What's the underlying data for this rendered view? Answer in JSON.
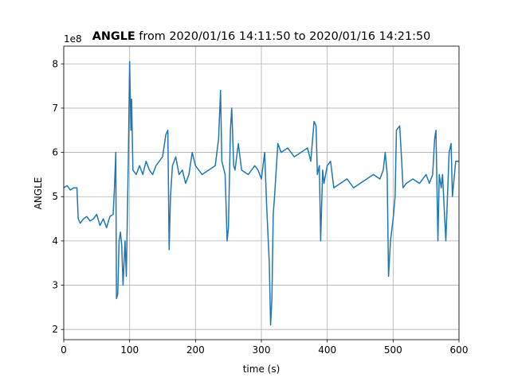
{
  "chart_data": {
    "type": "line",
    "title_bold": "ANGLE",
    "title": " from 2020/01/16 14:11:50 to 2020/01/16 14:21:50",
    "offset_text": "1e8",
    "x_label": "time (s)",
    "y_label": "ANGLE",
    "x": [
      0,
      5,
      10,
      15,
      20,
      22,
      25,
      30,
      35,
      40,
      45,
      50,
      55,
      60,
      65,
      70,
      75,
      77,
      79,
      80,
      82,
      84,
      86,
      88,
      90,
      93,
      95,
      98,
      100,
      102,
      103,
      105,
      110,
      115,
      120,
      125,
      130,
      135,
      140,
      145,
      150,
      155,
      158,
      160,
      162,
      165,
      170,
      175,
      180,
      185,
      190,
      195,
      200,
      210,
      220,
      230,
      235,
      238,
      240,
      245,
      248,
      250,
      253,
      255,
      258,
      260,
      265,
      270,
      280,
      290,
      295,
      300,
      305,
      308,
      312,
      314,
      316,
      318,
      320,
      325,
      330,
      340,
      350,
      360,
      370,
      375,
      380,
      383,
      385,
      388,
      390,
      393,
      395,
      400,
      405,
      410,
      420,
      430,
      440,
      450,
      460,
      470,
      480,
      485,
      488,
      491,
      493,
      496,
      500,
      503,
      505,
      510,
      513,
      515,
      520,
      530,
      540,
      550,
      555,
      560,
      563,
      565,
      568,
      570,
      573,
      575,
      580,
      585,
      588,
      590,
      595,
      600
    ],
    "values": [
      5.2,
      5.25,
      5.15,
      5.2,
      5.2,
      4.5,
      4.4,
      4.5,
      4.55,
      4.45,
      4.5,
      4.6,
      4.35,
      4.5,
      4.3,
      4.55,
      4.6,
      5.2,
      6.0,
      2.7,
      2.8,
      4.0,
      4.2,
      3.9,
      3.0,
      4.0,
      3.2,
      5.8,
      8.05,
      6.5,
      7.2,
      5.6,
      5.5,
      5.7,
      5.5,
      5.8,
      5.6,
      5.5,
      5.7,
      5.8,
      5.9,
      6.4,
      6.5,
      3.8,
      5.0,
      5.7,
      5.9,
      5.5,
      5.6,
      5.3,
      5.5,
      6.0,
      5.7,
      5.5,
      5.6,
      5.7,
      6.3,
      7.4,
      5.8,
      5.5,
      4.0,
      4.3,
      6.5,
      7.0,
      5.7,
      5.6,
      6.2,
      5.6,
      5.5,
      5.7,
      5.6,
      5.4,
      6.0,
      4.8,
      3.5,
      2.1,
      2.7,
      4.6,
      5.0,
      6.2,
      6.0,
      6.1,
      5.9,
      6.0,
      6.1,
      5.8,
      6.7,
      6.6,
      5.5,
      5.7,
      4.0,
      5.6,
      5.3,
      5.7,
      5.8,
      5.2,
      5.3,
      5.4,
      5.2,
      5.3,
      5.4,
      5.5,
      5.4,
      5.6,
      6.0,
      5.5,
      3.2,
      4.0,
      4.5,
      5.0,
      6.5,
      6.6,
      5.8,
      5.2,
      5.3,
      5.4,
      5.3,
      5.5,
      5.3,
      5.5,
      6.3,
      6.5,
      4.0,
      5.5,
      5.2,
      5.5,
      4.0,
      6.0,
      6.2,
      5.0,
      5.8,
      5.8
    ],
    "color": "#1f77b4",
    "xlim": [
      0,
      600
    ],
    "ylim": [
      1.77,
      8.4
    ],
    "xticks": [
      0,
      100,
      200,
      300,
      400,
      500,
      600
    ],
    "yticks": [
      2,
      3,
      4,
      5,
      6,
      7,
      8
    ],
    "grid": true
  }
}
